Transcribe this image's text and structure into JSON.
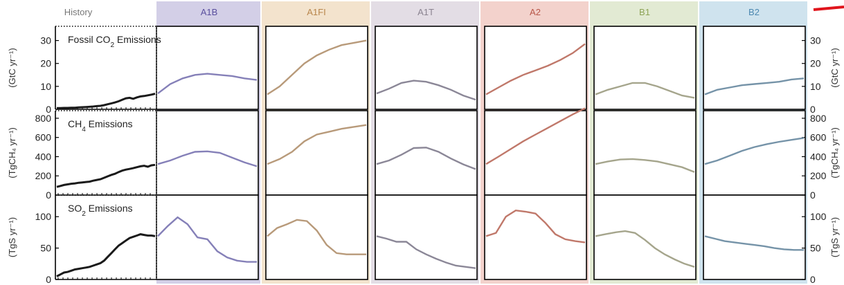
{
  "chart_data": {
    "type": "line",
    "column_headers": [
      {
        "label": "History",
        "band_color": "#ffffff",
        "text_color": "#777777"
      },
      {
        "label": "A1B",
        "band_color": "#d3cfe7",
        "text_color": "#5a4f9e"
      },
      {
        "label": "A1FI",
        "band_color": "#f3e3cd",
        "text_color": "#b8864c"
      },
      {
        "label": "A1T",
        "band_color": "#e3dde5",
        "text_color": "#8a8390"
      },
      {
        "label": "A2",
        "band_color": "#f3d2cc",
        "text_color": "#b85648"
      },
      {
        "label": "B1",
        "band_color": "#e2ead3",
        "text_color": "#8ea457"
      },
      {
        "label": "B2",
        "band_color": "#cfe3ee",
        "text_color": "#4c88b0"
      }
    ],
    "rows": [
      {
        "title_parts": [
          "Fossil CO",
          "2",
          " Emissions"
        ],
        "ylabel_left": "(GtC yr⁻¹)",
        "ylabel_right": "(GtC yr⁻¹)",
        "ylim": [
          0,
          35
        ],
        "yticks": [
          0,
          10,
          20,
          30
        ],
        "history": [
          0.5,
          0.5,
          0.6,
          0.6,
          0.7,
          0.7,
          0.8,
          0.9,
          1.0,
          1.1,
          1.2,
          1.4,
          1.5,
          1.8,
          2.2,
          2.6,
          3.0,
          3.5,
          4.2,
          4.8,
          5.0,
          4.6,
          5.2,
          5.6,
          5.8,
          6.1,
          6.4,
          6.8
        ],
        "scenarios": {
          "A1B": [
            6.9,
            11,
            13.5,
            15,
            15.5,
            15,
            14.5,
            13.5,
            12.8
          ],
          "A1FI": [
            6.5,
            10,
            15,
            20,
            23.5,
            26,
            28,
            29,
            30
          ],
          "A1T": [
            6.9,
            9,
            11.5,
            12.5,
            12,
            10.5,
            8.5,
            6,
            4.2
          ],
          "A2": [
            6.5,
            9.5,
            12.5,
            15,
            17,
            19,
            21.5,
            24.5,
            28.5
          ],
          "B1": [
            6.5,
            8.5,
            10,
            11.5,
            11.5,
            10,
            8,
            6,
            5
          ],
          "B2": [
            6.5,
            8.5,
            9.5,
            10.5,
            11,
            11.5,
            12,
            13,
            13.5
          ]
        }
      },
      {
        "title_parts": [
          "CH",
          "4",
          " Emissions"
        ],
        "ylabel_left": "(TgCH₄ yr⁻¹)",
        "ylabel_right": "(TgCH₄ yr⁻¹)",
        "ylim": [
          0,
          850
        ],
        "yticks": [
          0,
          200,
          400,
          600,
          800
        ],
        "history": [
          85,
          95,
          105,
          112,
          118,
          122,
          128,
          132,
          136,
          140,
          150,
          158,
          165,
          180,
          195,
          210,
          222,
          240,
          255,
          265,
          272,
          280,
          290,
          300,
          305,
          295,
          310,
          315
        ],
        "scenarios": {
          "A1B": [
            323,
            360,
            410,
            450,
            455,
            440,
            390,
            340,
            300
          ],
          "A1FI": [
            323,
            375,
            450,
            560,
            630,
            660,
            690,
            710,
            730
          ],
          "A1T": [
            323,
            360,
            420,
            490,
            495,
            450,
            380,
            320,
            270
          ],
          "A2": [
            323,
            400,
            480,
            560,
            630,
            700,
            770,
            840,
            905
          ],
          "B1": [
            323,
            350,
            370,
            375,
            365,
            350,
            320,
            290,
            240
          ],
          "B2": [
            323,
            360,
            410,
            460,
            500,
            530,
            555,
            575,
            595
          ]
        }
      },
      {
        "title_parts": [
          "SO",
          "2",
          " Emissions"
        ],
        "ylabel_left": "(TgS yr⁻¹)",
        "ylabel_right": "(TgS yr⁻¹)",
        "ylim": [
          0,
          130
        ],
        "yticks": [
          0,
          50,
          100
        ],
        "history": [
          5,
          8,
          11,
          12,
          14,
          16,
          17,
          18,
          19,
          20,
          22,
          24,
          26,
          30,
          36,
          42,
          48,
          54,
          58,
          62,
          66,
          68,
          70,
          72,
          71,
          70,
          70,
          69
        ],
        "scenarios": {
          "A1B": [
            69,
            85,
            99,
            88,
            67,
            64,
            45,
            35,
            30,
            28,
            28
          ],
          "A1FI": [
            69,
            82,
            88,
            95,
            93,
            78,
            55,
            42,
            40,
            40,
            40
          ],
          "A1T": [
            69,
            65,
            60,
            60,
            48,
            40,
            33,
            27,
            22,
            20,
            18
          ],
          "A2": [
            69,
            74,
            100,
            110,
            108,
            105,
            90,
            72,
            64,
            61,
            59
          ],
          "B1": [
            69,
            72,
            75,
            77,
            74,
            63,
            50,
            40,
            32,
            25,
            20
          ],
          "B2": [
            69,
            65,
            61,
            59,
            57,
            55,
            53,
            50,
            48,
            47,
            47
          ]
        }
      }
    ],
    "line_colors": {
      "History": "#1a1a1a",
      "A1B": "#8580b8",
      "A1FI": "#b89a7a",
      "A1T": "#8b8797",
      "A2": "#c0786a",
      "B1": "#a5a58c",
      "B2": "#7593a8"
    },
    "grid": false
  }
}
